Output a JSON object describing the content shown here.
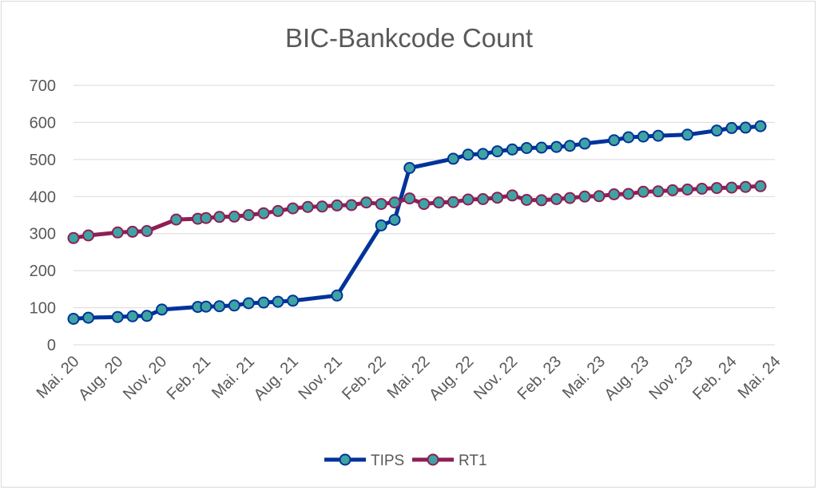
{
  "chart_data": {
    "type": "line",
    "title": "BIC-Bankcode Count",
    "xlabel": "",
    "ylabel": "",
    "ylim": [
      0,
      700
    ],
    "yticks": [
      0,
      100,
      200,
      300,
      400,
      500,
      600,
      700
    ],
    "xlim": [
      "2020-05",
      "2024-05"
    ],
    "xtick_labels": [
      "Mai. 20",
      "Aug. 20",
      "Nov. 20",
      "Feb. 21",
      "Mai. 21",
      "Aug. 21",
      "Nov. 21",
      "Feb. 22",
      "Mai. 22",
      "Aug. 22",
      "Nov. 22",
      "Feb. 23",
      "Mai. 23",
      "Aug. 23",
      "Nov. 23",
      "Feb. 24",
      "Mai. 24"
    ],
    "grid": "horizontal",
    "legend": "bottom-center",
    "colors": {
      "TIPS": "#00339a",
      "RT1": "#8e1f55",
      "marker_fill": "#3fa3a3",
      "grid": "#d9d9d9",
      "text": "#595959"
    },
    "series": [
      {
        "name": "TIPS",
        "points": [
          [
            "2020-05-01",
            70
          ],
          [
            "2020-06-01",
            73
          ],
          [
            "2020-08-01",
            75
          ],
          [
            "2020-09-01",
            77
          ],
          [
            "2020-10-01",
            78
          ],
          [
            "2020-11-01",
            95
          ],
          [
            "2021-01-15",
            102
          ],
          [
            "2021-02-01",
            103
          ],
          [
            "2021-03-01",
            104
          ],
          [
            "2021-04-01",
            106
          ],
          [
            "2021-05-01",
            112
          ],
          [
            "2021-06-01",
            114
          ],
          [
            "2021-07-01",
            116
          ],
          [
            "2021-08-01",
            119
          ],
          [
            "2021-11-01",
            133
          ],
          [
            "2022-02-01",
            322
          ],
          [
            "2022-03-01",
            337
          ],
          [
            "2022-04-01",
            477
          ],
          [
            "2022-07-01",
            502
          ],
          [
            "2022-08-01",
            513
          ],
          [
            "2022-09-01",
            515
          ],
          [
            "2022-10-01",
            522
          ],
          [
            "2022-11-01",
            527
          ],
          [
            "2022-12-01",
            531
          ],
          [
            "2023-01-01",
            532
          ],
          [
            "2023-02-01",
            534
          ],
          [
            "2023-03-01",
            537
          ],
          [
            "2023-04-01",
            543
          ],
          [
            "2023-06-01",
            552
          ],
          [
            "2023-07-01",
            560
          ],
          [
            "2023-08-01",
            562
          ],
          [
            "2023-09-01",
            564
          ],
          [
            "2023-11-01",
            567
          ],
          [
            "2024-01-01",
            578
          ],
          [
            "2024-02-01",
            585
          ],
          [
            "2024-03-01",
            586
          ],
          [
            "2024-04-01",
            590
          ]
        ]
      },
      {
        "name": "RT1",
        "points": [
          [
            "2020-05-01",
            288
          ],
          [
            "2020-06-01",
            295
          ],
          [
            "2020-08-01",
            303
          ],
          [
            "2020-09-01",
            305
          ],
          [
            "2020-10-01",
            307
          ],
          [
            "2020-12-01",
            338
          ],
          [
            "2021-01-15",
            340
          ],
          [
            "2021-02-01",
            342
          ],
          [
            "2021-03-01",
            345
          ],
          [
            "2021-04-01",
            346
          ],
          [
            "2021-05-01",
            350
          ],
          [
            "2021-06-01",
            355
          ],
          [
            "2021-07-01",
            361
          ],
          [
            "2021-08-01",
            368
          ],
          [
            "2021-09-01",
            372
          ],
          [
            "2021-10-01",
            373
          ],
          [
            "2021-11-01",
            376
          ],
          [
            "2021-12-01",
            377
          ],
          [
            "2022-01-01",
            384
          ],
          [
            "2022-02-01",
            380
          ],
          [
            "2022-03-01",
            384
          ],
          [
            "2022-04-01",
            395
          ],
          [
            "2022-05-01",
            380
          ],
          [
            "2022-06-01",
            384
          ],
          [
            "2022-07-01",
            385
          ],
          [
            "2022-08-01",
            392
          ],
          [
            "2022-09-01",
            393
          ],
          [
            "2022-10-01",
            397
          ],
          [
            "2022-11-01",
            403
          ],
          [
            "2022-12-01",
            391
          ],
          [
            "2023-01-01",
            390
          ],
          [
            "2023-02-01",
            393
          ],
          [
            "2023-03-01",
            396
          ],
          [
            "2023-04-01",
            400
          ],
          [
            "2023-05-01",
            401
          ],
          [
            "2023-06-01",
            406
          ],
          [
            "2023-07-01",
            407
          ],
          [
            "2023-08-01",
            413
          ],
          [
            "2023-09-01",
            414
          ],
          [
            "2023-10-01",
            417
          ],
          [
            "2023-11-01",
            419
          ],
          [
            "2023-12-01",
            421
          ],
          [
            "2024-01-01",
            423
          ],
          [
            "2024-02-01",
            424
          ],
          [
            "2024-03-01",
            426
          ],
          [
            "2024-04-01",
            428
          ]
        ]
      }
    ]
  }
}
